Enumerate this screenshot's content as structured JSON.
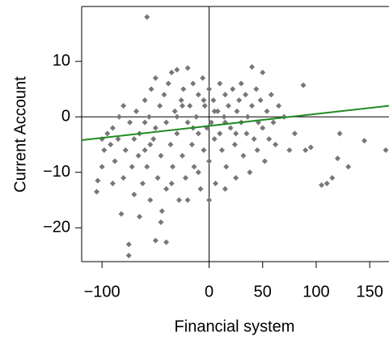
{
  "chart_data": {
    "type": "scatter",
    "x_label": "Financial system",
    "y_label": "Current Account",
    "color": "#777777",
    "xlim": [
      -119,
      168
    ],
    "ylim": [
      -26.1,
      19.9
    ],
    "xticks": [
      {
        "value": -100,
        "label": "−100"
      },
      0,
      50,
      100,
      150
    ],
    "yticks": [
      {
        "value": -20,
        "label": "−20"
      },
      {
        "value": -10,
        "label": "−10"
      },
      0,
      10
    ],
    "reference_lines": {
      "x": 0,
      "y": 0,
      "color": "#000000"
    },
    "trend_line": {
      "x": [
        -119,
        168
      ],
      "y": [
        -4.2,
        2.0
      ],
      "color": "#228b22"
    },
    "x": [
      -58,
      -105,
      -104,
      -100,
      -100,
      -98,
      -95,
      -92,
      -90,
      -88,
      -85,
      -84,
      -82,
      -80,
      -80,
      -78,
      -75,
      -75,
      -74,
      -72,
      -70,
      -70,
      -68,
      -66,
      -65,
      -62,
      -60,
      -60,
      -58,
      -56,
      -55,
      -54,
      -52,
      -50,
      -50,
      -50,
      -48,
      -46,
      -45,
      -44,
      -42,
      -40,
      -40,
      -40,
      -38,
      -36,
      -35,
      -34,
      -32,
      -30,
      -30,
      -28,
      -26,
      -25,
      -24,
      -22,
      -20,
      -20,
      -18,
      -16,
      -15,
      -14,
      -12,
      -10,
      -10,
      -8,
      -6,
      -5,
      -4,
      -2,
      0,
      0,
      2,
      4,
      5,
      6,
      8,
      10,
      10,
      12,
      14,
      15,
      16,
      18,
      20,
      22,
      24,
      25,
      26,
      28,
      30,
      32,
      34,
      35,
      36,
      38,
      40,
      40,
      42,
      44,
      45,
      46,
      48,
      50,
      50,
      52,
      54,
      56,
      58,
      60,
      62,
      65,
      70,
      75,
      80,
      88,
      90,
      95,
      105,
      110,
      115,
      120,
      122,
      130,
      145,
      165,
      -90,
      -65,
      -45,
      -35,
      -20,
      -10,
      0,
      15,
      -60,
      -30,
      -15,
      5,
      25,
      -55,
      -25,
      -5,
      30,
      15
    ],
    "y": [
      18,
      -13.5,
      -11.5,
      -9,
      -4,
      -6,
      -3,
      -5,
      -2,
      -8,
      -4,
      0,
      -17.5,
      -11,
      2,
      -6,
      -23,
      -25,
      -1,
      -9,
      -4,
      -14,
      1,
      -7,
      -3,
      -12,
      3,
      -6,
      -9,
      0,
      -15,
      5,
      -4,
      -22.3,
      7,
      -2,
      -11,
      2,
      -7,
      -17,
      4,
      -22.6,
      -1,
      -13,
      6,
      -5,
      8,
      -9,
      1,
      8.5,
      -3,
      -15,
      3,
      -7,
      5,
      -11,
      8.8,
      -1,
      2,
      -5,
      6,
      -9,
      0,
      4,
      -3,
      -13,
      7,
      -6,
      2,
      -2,
      5,
      -8,
      -1,
      3,
      -4,
      -12,
      1,
      6,
      -3,
      -6,
      0,
      4,
      -9,
      2,
      -2,
      5,
      -5,
      -11,
      1,
      3,
      -1,
      -7,
      4,
      -3,
      0,
      -10,
      9,
      2,
      -4,
      5,
      -6,
      -1,
      3,
      8,
      -2,
      -8,
      1,
      -4,
      4,
      -1,
      -5,
      2,
      0,
      -6,
      -3,
      5.7,
      -6,
      -5.5,
      -12.3,
      -12,
      -11,
      -7.5,
      -3,
      -9,
      -4.3,
      -6,
      -12,
      -18,
      -19,
      -12,
      -15,
      -10,
      -15,
      -13,
      -1,
      0,
      -2,
      1,
      -3,
      -5,
      2,
      3,
      6,
      -1
    ]
  }
}
